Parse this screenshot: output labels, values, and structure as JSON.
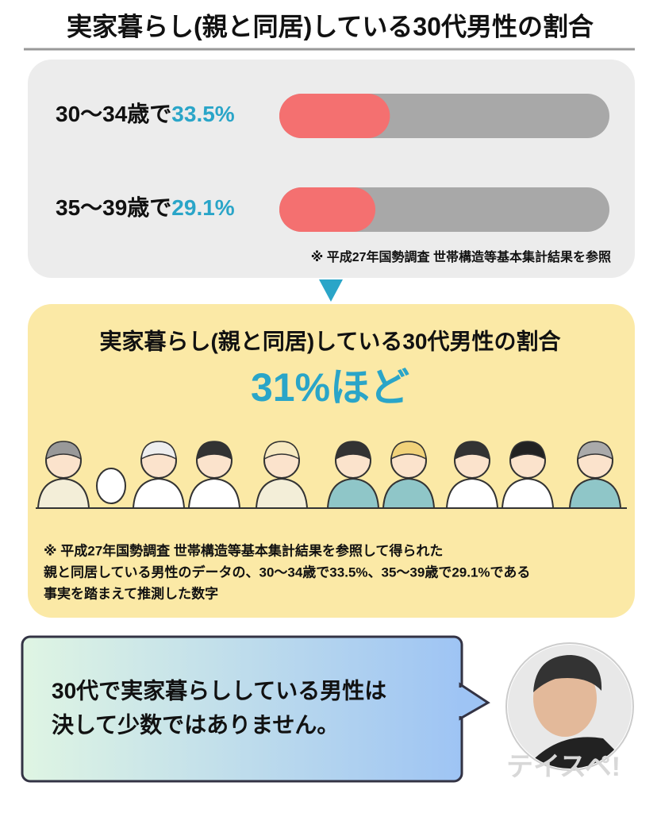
{
  "title": "実家暮らし(親と同居)している30代男性の割合",
  "stats": {
    "labels": [
      "30〜34歳で",
      "35〜39歳で"
    ],
    "values": [
      33.5,
      29.1
    ],
    "value_labels": [
      "33.5%",
      "29.1%"
    ],
    "xlim": [
      0,
      100
    ],
    "note": "※ 平成27年国勢調査 世帯構造等基本集計結果を参照"
  },
  "result": {
    "heading": "実家暮らし(親と同居)している30代男性の割合",
    "value": "31%ほど",
    "note_lines": [
      "※ 平成27年国勢調査 世帯構造等基本集計結果を参照して得られた",
      "親と同居している男性のデータの、30〜34歳で33.5%、35〜39歳で29.1%である",
      "事実を踏まえて推測した数字"
    ]
  },
  "speech": {
    "lines": [
      "30代で実家暮らししている男性は",
      "決して少数ではありません。"
    ]
  },
  "watermark": "テイスペ!"
}
